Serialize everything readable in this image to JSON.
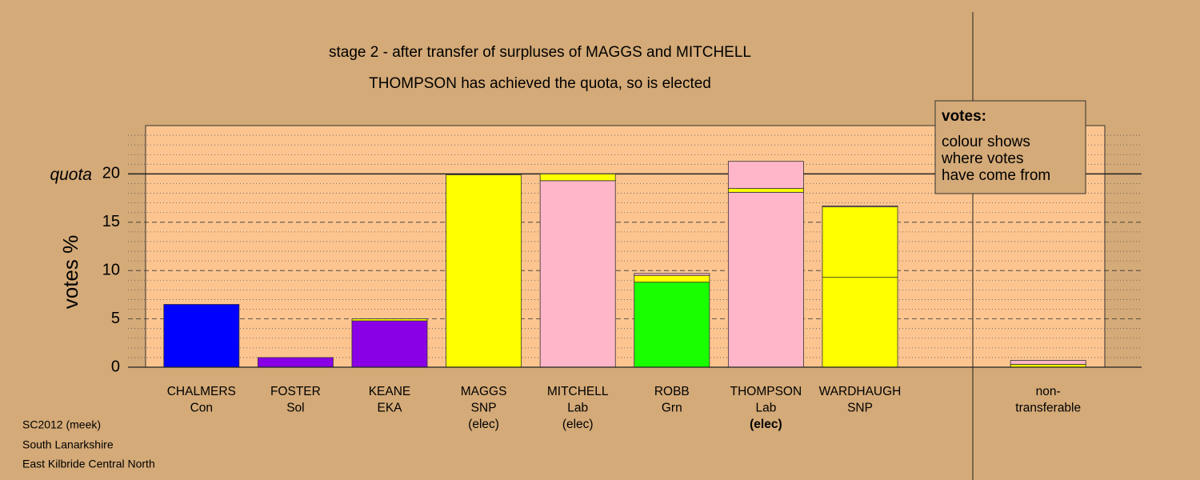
{
  "chart_data": {
    "type": "stacked_bar",
    "title": "stage 2 - after transfer of surpluses of MAGGS and MITCHELL",
    "subtitle": "THOMPSON has achieved the quota, so is elected",
    "y_label": "votes %",
    "categories": [
      [
        "CHALMERS",
        "Con"
      ],
      [
        "FOSTER",
        "Sol"
      ],
      [
        "KEANE",
        "EKA"
      ],
      [
        "MAGGS",
        "SNP",
        "(elec)"
      ],
      [
        "MITCHELL",
        "Lab",
        "(elec)"
      ],
      [
        "ROBB",
        "Grn"
      ],
      [
        "THOMPSON",
        "Lab",
        "(elec)"
      ],
      [
        "WARDHAUGH",
        "SNP"
      ],
      null,
      [
        "non-",
        "transferable"
      ]
    ],
    "bold_categories": [
      6
    ],
    "series": [
      {
        "values": [
          6.5,
          1.0,
          4.8,
          19.9,
          19.3,
          8.8,
          18.1,
          9.3,
          null,
          0.3
        ],
        "colors": [
          "#0000ff",
          "#8a00e6",
          "#8a00e6",
          "#ffff00",
          "#ffb6c8",
          "#1aff00",
          "#ffb6c8",
          "#ffff00",
          null,
          "#ffff00"
        ]
      },
      {
        "values": [
          null,
          null,
          0.2,
          null,
          0.7,
          0.7,
          0.4,
          7.3,
          null,
          0.4
        ],
        "colors": [
          null,
          null,
          "#ffff00",
          null,
          "#ffff00",
          "#ffff00",
          "#ffff00",
          "#ffff00",
          null,
          "#ffb6c8"
        ]
      },
      {
        "values": [
          null,
          null,
          null,
          null,
          null,
          0.2,
          2.8,
          0.1,
          null,
          null
        ],
        "colors": [
          null,
          null,
          null,
          null,
          null,
          "#ffb6c8",
          "#ffb6c8",
          "#ffb6c8",
          null,
          null
        ]
      }
    ],
    "ylim": [
      0,
      25
    ],
    "yticks": [
      0,
      5,
      10,
      15,
      20
    ],
    "minor_yticks": [
      1,
      2,
      3,
      4,
      6,
      7,
      8,
      9,
      11,
      12,
      13,
      14,
      16,
      17,
      18,
      19,
      21,
      22,
      23,
      24
    ],
    "quota": {
      "label": "quota",
      "value": 20
    },
    "legend": {
      "title": "votes:",
      "lines": [
        "colour shows",
        "where votes",
        "have come from"
      ]
    },
    "footer": [
      "SC2012 (meek)",
      "South Lanarkshire",
      "East Kilbride Central North"
    ]
  }
}
